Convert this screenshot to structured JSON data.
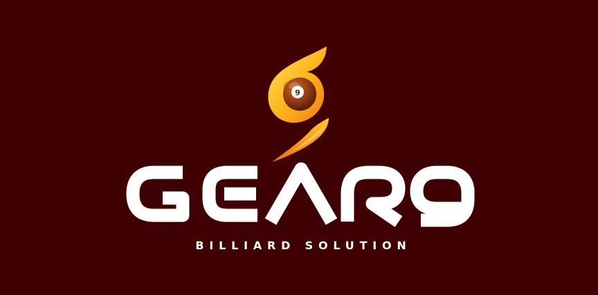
{
  "brand": {
    "name": "GEAR9",
    "tagline": "BILLIARD SOLUTION",
    "ball_number": "9"
  },
  "icons": {
    "emblem": "flame-billiard-ball-icon",
    "wordmark": "gear9-wordmark-logo"
  },
  "colors": {
    "background": "#3f0004",
    "text": "#ffffff",
    "flame_light": "#ffd23a",
    "flame_mid": "#ffa21a",
    "flame_dark": "#f27010",
    "ball": "#8c3b14",
    "ball_label": "#ffffff"
  }
}
